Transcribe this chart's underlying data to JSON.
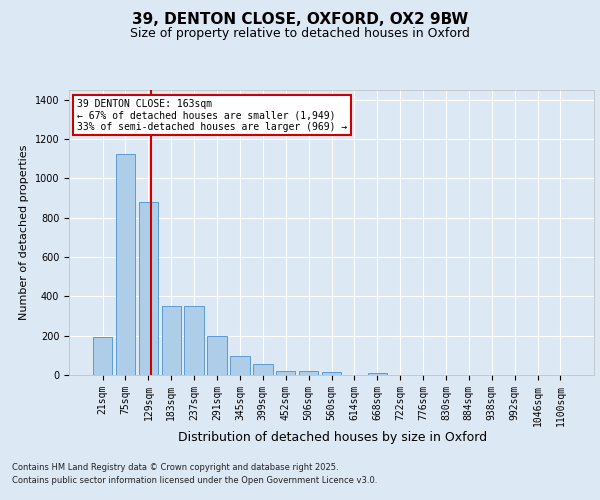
{
  "title1": "39, DENTON CLOSE, OXFORD, OX2 9BW",
  "title2": "Size of property relative to detached houses in Oxford",
  "xlabel": "Distribution of detached houses by size in Oxford",
  "ylabel": "Number of detached properties",
  "categories": [
    "21sqm",
    "75sqm",
    "129sqm",
    "183sqm",
    "237sqm",
    "291sqm",
    "345sqm",
    "399sqm",
    "452sqm",
    "506sqm",
    "560sqm",
    "614sqm",
    "668sqm",
    "722sqm",
    "776sqm",
    "830sqm",
    "884sqm",
    "938sqm",
    "992sqm",
    "1046sqm",
    "1100sqm"
  ],
  "values": [
    195,
    1125,
    880,
    352,
    352,
    197,
    95,
    57,
    22,
    22,
    15,
    0,
    12,
    0,
    0,
    0,
    0,
    0,
    0,
    0,
    0
  ],
  "bar_color": "#aecde8",
  "bar_edge_color": "#5b9bd5",
  "highlight_color": "#cc0000",
  "background_color": "#dde8f5",
  "grid_color": "#ffffff",
  "ylim": [
    0,
    1450
  ],
  "vline_x": 2.13,
  "annotation_line1": "39 DENTON CLOSE: 163sqm",
  "annotation_line2": "← 67% of detached houses are smaller (1,949)",
  "annotation_line3": "33% of semi-detached houses are larger (969) →",
  "footnote1": "Contains HM Land Registry data © Crown copyright and database right 2025.",
  "footnote2": "Contains public sector information licensed under the Open Government Licence v3.0.",
  "title1_fontsize": 11,
  "title2_fontsize": 9,
  "ylabel_fontsize": 8,
  "xlabel_fontsize": 9,
  "tick_fontsize": 7,
  "annot_fontsize": 7,
  "footnote_fontsize": 6
}
